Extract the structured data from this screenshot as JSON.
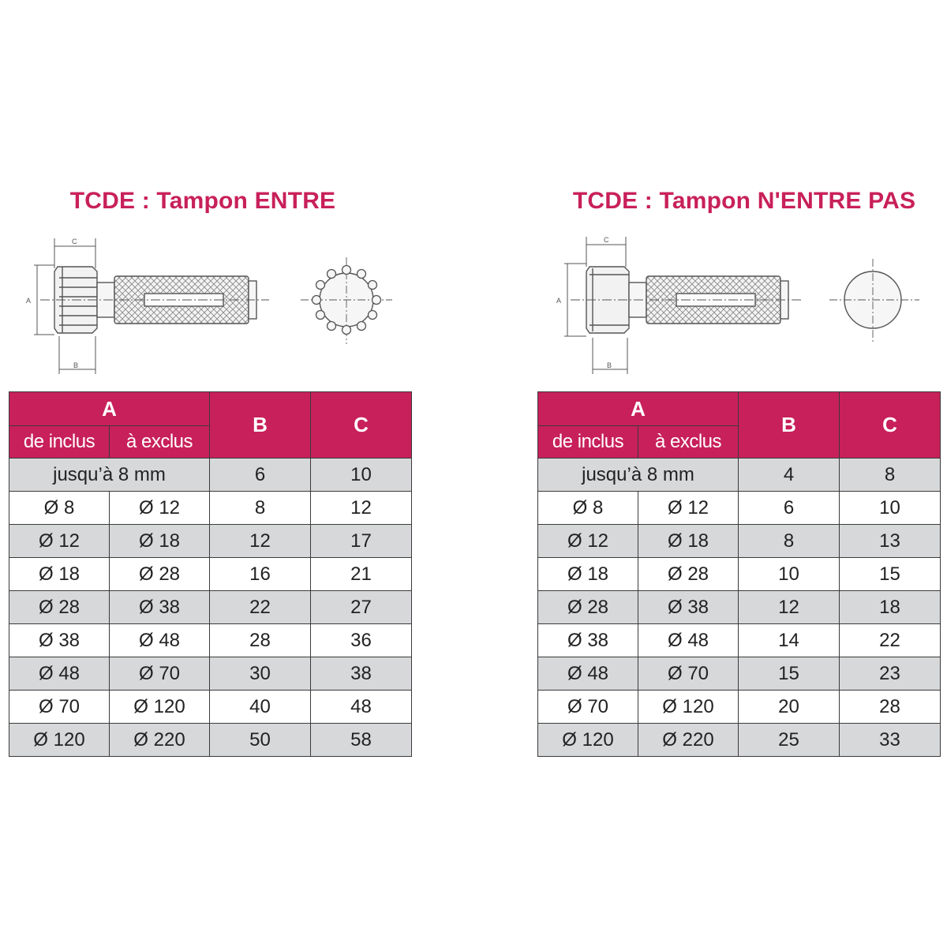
{
  "colors": {
    "accent": "#c8205a",
    "row_grey": "#d7d8da",
    "text": "#222222"
  },
  "panels": [
    {
      "title": "TCDE : Tampon ENTRE",
      "drawing": {
        "dim_c": "C",
        "dim_a": "A",
        "dim_b": "B",
        "icon": "spline-plug-gauge-drawing"
      },
      "headers": {
        "a": "A",
        "a_from": "de inclus",
        "a_to": "à exclus",
        "b": "B",
        "c": "C"
      },
      "first_row": {
        "label": "jusqu’à 8 mm",
        "b": "6",
        "c": "10"
      },
      "rows": [
        {
          "from": "Ø 8",
          "to": "Ø 12",
          "b": "8",
          "c": "12"
        },
        {
          "from": "Ø 12",
          "to": "Ø 18",
          "b": "12",
          "c": "17"
        },
        {
          "from": "Ø 18",
          "to": "Ø 28",
          "b": "16",
          "c": "21"
        },
        {
          "from": "Ø 28",
          "to": "Ø 38",
          "b": "22",
          "c": "27"
        },
        {
          "from": "Ø 38",
          "to": "Ø 48",
          "b": "28",
          "c": "36"
        },
        {
          "from": "Ø 48",
          "to": "Ø 70",
          "b": "30",
          "c": "38"
        },
        {
          "from": "Ø 70",
          "to": "Ø 120",
          "b": "40",
          "c": "48"
        },
        {
          "from": "Ø 120",
          "to": "Ø 220",
          "b": "50",
          "c": "58"
        }
      ]
    },
    {
      "title": "TCDE : Tampon N'ENTRE PAS",
      "drawing": {
        "dim_c": "C",
        "dim_a": "A",
        "dim_b": "B",
        "icon": "no-go-plug-gauge-drawing"
      },
      "headers": {
        "a": "A",
        "a_from": "de inclus",
        "a_to": "à exclus",
        "b": "B",
        "c": "C"
      },
      "first_row": {
        "label": "jusqu’à 8 mm",
        "b": "4",
        "c": "8"
      },
      "rows": [
        {
          "from": "Ø 8",
          "to": "Ø 12",
          "b": "6",
          "c": "10"
        },
        {
          "from": "Ø 12",
          "to": "Ø 18",
          "b": "8",
          "c": "13"
        },
        {
          "from": "Ø 18",
          "to": "Ø 28",
          "b": "10",
          "c": "15"
        },
        {
          "from": "Ø 28",
          "to": "Ø 38",
          "b": "12",
          "c": "18"
        },
        {
          "from": "Ø 38",
          "to": "Ø 48",
          "b": "14",
          "c": "22"
        },
        {
          "from": "Ø 48",
          "to": "Ø 70",
          "b": "15",
          "c": "23"
        },
        {
          "from": "Ø 70",
          "to": "Ø 120",
          "b": "20",
          "c": "28"
        },
        {
          "from": "Ø 120",
          "to": "Ø 220",
          "b": "25",
          "c": "33"
        }
      ]
    }
  ]
}
